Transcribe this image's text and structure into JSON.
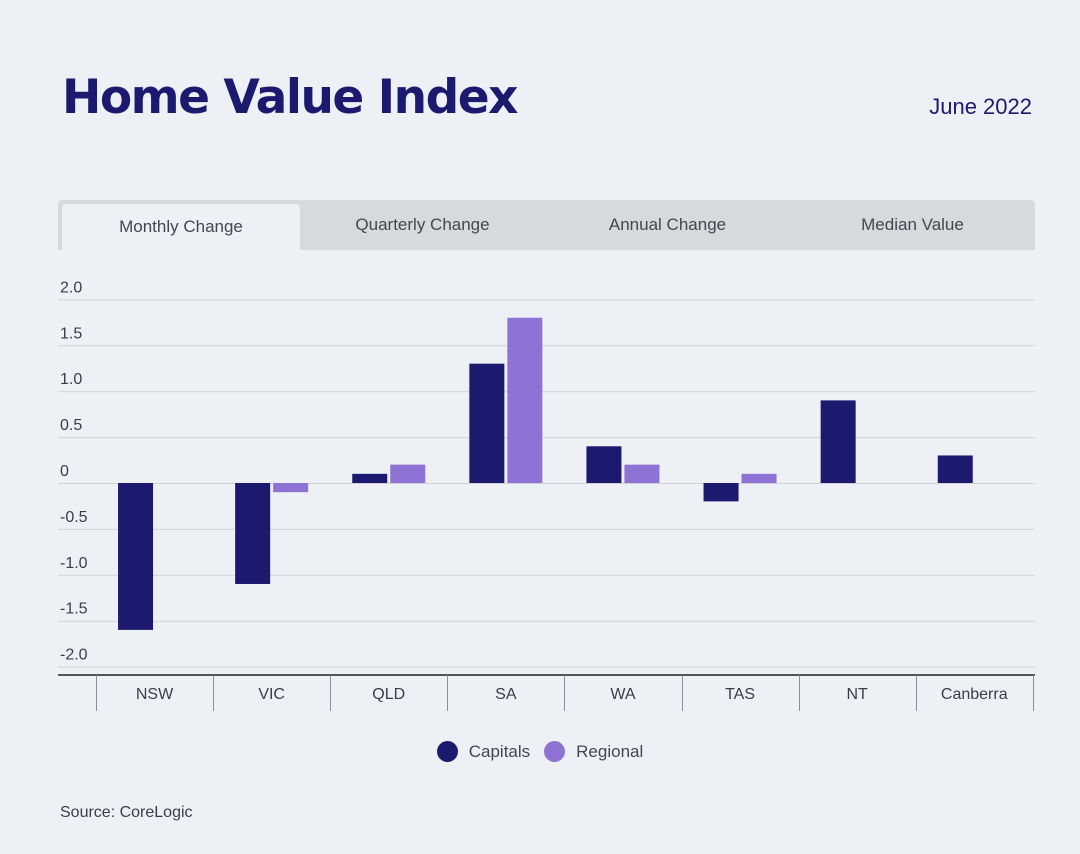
{
  "header": {
    "title": "Home Value Index",
    "date": "June 2022"
  },
  "tabs": [
    {
      "label": "Monthly Change",
      "active": true
    },
    {
      "label": "Quarterly Change",
      "active": false
    },
    {
      "label": "Annual Change",
      "active": false
    },
    {
      "label": "Median Value",
      "active": false
    }
  ],
  "colors": {
    "capitals": "#1c1a6e",
    "regional": "#8e73d4",
    "grid": "#cfd3d8",
    "axis": "#555555"
  },
  "footer": {
    "source": "Source: CoreLogic"
  },
  "chart_data": {
    "type": "bar",
    "categories": [
      "NSW",
      "VIC",
      "QLD",
      "SA",
      "WA",
      "TAS",
      "NT",
      "Canberra"
    ],
    "series": [
      {
        "name": "Capitals",
        "values": [
          -1.6,
          -1.1,
          0.1,
          1.3,
          0.4,
          -0.2,
          0.9,
          0.3
        ]
      },
      {
        "name": "Regional",
        "values": [
          null,
          -0.1,
          0.2,
          1.8,
          0.2,
          0.1,
          null,
          null
        ]
      }
    ],
    "yticks": [
      2.0,
      1.5,
      1.0,
      0.5,
      0,
      -0.5,
      -1.0,
      -1.5,
      -2.0
    ],
    "ytick_labels": [
      "2.0",
      "1.5",
      "1.0",
      "0.5",
      "0",
      "-0.5",
      "-1.0",
      "-1.5",
      "-2.0"
    ],
    "ylim": [
      -2.0,
      2.0
    ],
    "grid": true,
    "legend_position": "bottom-center"
  }
}
